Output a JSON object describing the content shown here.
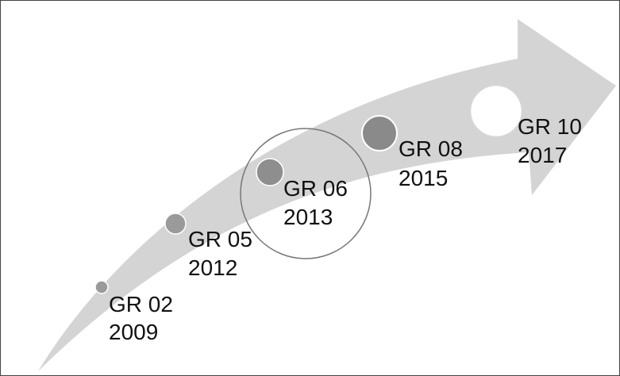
{
  "nodes": [
    {
      "label": "GR 02",
      "year": "2009"
    },
    {
      "label": "GR 05",
      "year": "2012"
    },
    {
      "label": "GR 06",
      "year": "2013"
    },
    {
      "label": "GR 08",
      "year": "2015"
    },
    {
      "label": "GR 10",
      "year": "2017"
    }
  ]
}
